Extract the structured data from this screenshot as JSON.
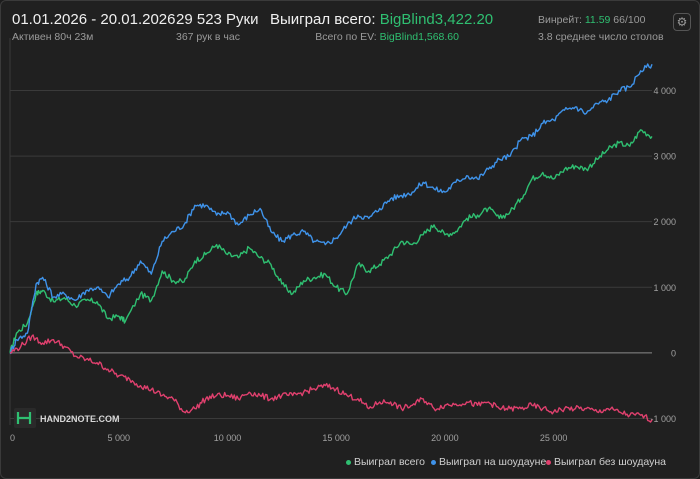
{
  "header": {
    "date_range": "01.01.2026 - 20.01.2026",
    "active_time": "Активен 80ч 23м",
    "hands": "29 523 Руки",
    "hands_per_hour": "367 рук в час",
    "won_total_label": "Выиграл всего:",
    "won_total_value": "BigBlind3,422.20",
    "ev_total_label": "Всего по EV:",
    "ev_total_value": "BigBlind1,568.60",
    "winrate_label": "Винрейт:",
    "winrate_value": "11.59",
    "winrate_sample": "66/100",
    "avg_tables": "3.8 среднее число столов"
  },
  "logo_text": "HAND2NOTE.COM",
  "colors": {
    "won_total": "#2fbf71",
    "won_showdown": "#3f93ea",
    "won_no_showdown": "#e0406e",
    "grid": "#3a3a3a",
    "zero_line": "#8a8a8a"
  },
  "chart_data": {
    "type": "line",
    "xlim": [
      0,
      29523
    ],
    "ylim": [
      -1100,
      4800
    ],
    "x_ticks": [
      "0",
      "5 000",
      "10 000",
      "15 000",
      "20 000",
      "25 000"
    ],
    "x_tick_values": [
      0,
      5000,
      10000,
      15000,
      20000,
      25000
    ],
    "y_ticks": [
      "-1 000",
      "0",
      "1 000",
      "2 000",
      "3 000",
      "4 000"
    ],
    "y_tick_values": [
      -1000,
      0,
      1000,
      2000,
      3000,
      4000
    ],
    "grid": true,
    "legend_position": "bottom-right",
    "series": [
      {
        "name": "Выиграл всего",
        "color": "#2fbf71",
        "points": [
          [
            0,
            0
          ],
          [
            300,
            300
          ],
          [
            800,
            450
          ],
          [
            1200,
            900
          ],
          [
            1500,
            950
          ],
          [
            2000,
            780
          ],
          [
            2500,
            840
          ],
          [
            3000,
            720
          ],
          [
            3500,
            800
          ],
          [
            4000,
            780
          ],
          [
            4500,
            520
          ],
          [
            5000,
            560
          ],
          [
            5300,
            480
          ],
          [
            6000,
            900
          ],
          [
            6500,
            800
          ],
          [
            7000,
            1250
          ],
          [
            7500,
            1100
          ],
          [
            8000,
            1080
          ],
          [
            8500,
            1400
          ],
          [
            9000,
            1500
          ],
          [
            9500,
            1650
          ],
          [
            10000,
            1500
          ],
          [
            10500,
            1450
          ],
          [
            11000,
            1600
          ],
          [
            11500,
            1450
          ],
          [
            12000,
            1350
          ],
          [
            12500,
            1050
          ],
          [
            13000,
            900
          ],
          [
            13500,
            1100
          ],
          [
            14000,
            1150
          ],
          [
            14500,
            1200
          ],
          [
            15000,
            1000
          ],
          [
            15500,
            900
          ],
          [
            16000,
            1350
          ],
          [
            16500,
            1250
          ],
          [
            17000,
            1350
          ],
          [
            17500,
            1500
          ],
          [
            18000,
            1700
          ],
          [
            18500,
            1650
          ],
          [
            19000,
            1800
          ],
          [
            19500,
            1950
          ],
          [
            20000,
            1800
          ],
          [
            20500,
            1850
          ],
          [
            21000,
            2050
          ],
          [
            21500,
            2100
          ],
          [
            22000,
            2200
          ],
          [
            22500,
            2050
          ],
          [
            23000,
            2150
          ],
          [
            23500,
            2350
          ],
          [
            24000,
            2650
          ],
          [
            24500,
            2750
          ],
          [
            25000,
            2650
          ],
          [
            25500,
            2800
          ],
          [
            26000,
            2850
          ],
          [
            26500,
            2800
          ],
          [
            27000,
            2950
          ],
          [
            27500,
            3100
          ],
          [
            28000,
            3200
          ],
          [
            28500,
            3150
          ],
          [
            29000,
            3400
          ],
          [
            29523,
            3300
          ]
        ]
      },
      {
        "name": "Выиграл на шоудауне",
        "color": "#3f93ea",
        "points": [
          [
            0,
            0
          ],
          [
            300,
            200
          ],
          [
            800,
            300
          ],
          [
            1200,
            1050
          ],
          [
            1500,
            1150
          ],
          [
            2000,
            850
          ],
          [
            2500,
            900
          ],
          [
            3000,
            800
          ],
          [
            3500,
            950
          ],
          [
            4000,
            1000
          ],
          [
            4500,
            850
          ],
          [
            5000,
            1050
          ],
          [
            5500,
            1150
          ],
          [
            6000,
            1400
          ],
          [
            6500,
            1200
          ],
          [
            7000,
            1700
          ],
          [
            7500,
            1850
          ],
          [
            8000,
            1950
          ],
          [
            8500,
            2250
          ],
          [
            9000,
            2250
          ],
          [
            9500,
            2100
          ],
          [
            10000,
            2150
          ],
          [
            10500,
            1950
          ],
          [
            11000,
            2100
          ],
          [
            11500,
            2200
          ],
          [
            12000,
            1850
          ],
          [
            12500,
            1700
          ],
          [
            13000,
            1800
          ],
          [
            13500,
            1850
          ],
          [
            14000,
            1700
          ],
          [
            14500,
            1650
          ],
          [
            15000,
            1750
          ],
          [
            15500,
            1950
          ],
          [
            16000,
            2100
          ],
          [
            16500,
            2050
          ],
          [
            17000,
            2200
          ],
          [
            17500,
            2350
          ],
          [
            18000,
            2400
          ],
          [
            18500,
            2450
          ],
          [
            19000,
            2600
          ],
          [
            19500,
            2500
          ],
          [
            20000,
            2450
          ],
          [
            20500,
            2600
          ],
          [
            21000,
            2700
          ],
          [
            21500,
            2650
          ],
          [
            22000,
            2800
          ],
          [
            22500,
            2950
          ],
          [
            23000,
            3000
          ],
          [
            23500,
            3250
          ],
          [
            24000,
            3300
          ],
          [
            24500,
            3500
          ],
          [
            25000,
            3550
          ],
          [
            25500,
            3700
          ],
          [
            26000,
            3750
          ],
          [
            26500,
            3650
          ],
          [
            27000,
            3800
          ],
          [
            27500,
            3850
          ],
          [
            28000,
            4000
          ],
          [
            28500,
            4050
          ],
          [
            29000,
            4300
          ],
          [
            29523,
            4400
          ]
        ]
      },
      {
        "name": "Выиграл без шоудауна",
        "color": "#e0406e",
        "points": [
          [
            0,
            0
          ],
          [
            500,
            100
          ],
          [
            1000,
            250
          ],
          [
            1500,
            150
          ],
          [
            2000,
            200
          ],
          [
            2500,
            100
          ],
          [
            3000,
            -50
          ],
          [
            3500,
            -100
          ],
          [
            4000,
            -150
          ],
          [
            4500,
            -250
          ],
          [
            5000,
            -350
          ],
          [
            5500,
            -400
          ],
          [
            6000,
            -500
          ],
          [
            6500,
            -560
          ],
          [
            7000,
            -650
          ],
          [
            7500,
            -700
          ],
          [
            8000,
            -900
          ],
          [
            8500,
            -850
          ],
          [
            9000,
            -700
          ],
          [
            9500,
            -650
          ],
          [
            10000,
            -650
          ],
          [
            10500,
            -700
          ],
          [
            11000,
            -600
          ],
          [
            11500,
            -650
          ],
          [
            12000,
            -700
          ],
          [
            12500,
            -650
          ],
          [
            13000,
            -650
          ],
          [
            13500,
            -600
          ],
          [
            14000,
            -550
          ],
          [
            14500,
            -500
          ],
          [
            15000,
            -550
          ],
          [
            15500,
            -650
          ],
          [
            16000,
            -700
          ],
          [
            16500,
            -850
          ],
          [
            17000,
            -750
          ],
          [
            17500,
            -750
          ],
          [
            18000,
            -850
          ],
          [
            18500,
            -800
          ],
          [
            19000,
            -700
          ],
          [
            19500,
            -850
          ],
          [
            20000,
            -800
          ],
          [
            20500,
            -780
          ],
          [
            21000,
            -750
          ],
          [
            21500,
            -800
          ],
          [
            22000,
            -750
          ],
          [
            22500,
            -850
          ],
          [
            23000,
            -850
          ],
          [
            23500,
            -850
          ],
          [
            24000,
            -800
          ],
          [
            24500,
            -850
          ],
          [
            25000,
            -900
          ],
          [
            25500,
            -850
          ],
          [
            26000,
            -850
          ],
          [
            26500,
            -850
          ],
          [
            27000,
            -900
          ],
          [
            27500,
            -850
          ],
          [
            28000,
            -900
          ],
          [
            28500,
            -950
          ],
          [
            29000,
            -950
          ],
          [
            29523,
            -1020
          ]
        ]
      }
    ]
  }
}
